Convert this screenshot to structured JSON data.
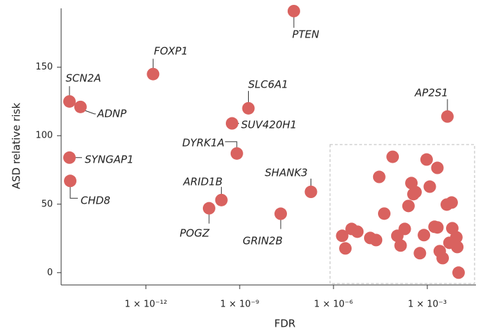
{
  "chart_data": {
    "type": "scatter",
    "x_label": "FDR",
    "y_label": "ASD relative risk",
    "log_x": true,
    "color": "#d9625f",
    "xlim": [
      1.95e-15,
      0.036
    ],
    "ylim": [
      -9,
      193
    ],
    "xticks": [
      {
        "value": 1e-12,
        "label": "1 × 10⁻¹²"
      },
      {
        "value": 1e-09,
        "label": "1 × 10⁻⁹"
      },
      {
        "value": 1e-06,
        "label": "1 × 10⁻⁶"
      },
      {
        "value": 0.001,
        "label": "1 × 10⁻³"
      }
    ],
    "yticks": [
      0,
      50,
      100,
      150
    ],
    "x": [
      5.4e-08,
      1.7e-12,
      3.6e-15,
      8.1e-15,
      1.9e-09,
      0.0044,
      5.7e-10,
      8.1e-10,
      3.6e-15,
      3.8e-15,
      1.9e-07,
      2.6e-10,
      1.05e-10,
      2.05e-08,
      7.8e-05,
      0.00095,
      0.0021,
      2.9e-05,
      0.00031,
      0.0012,
      0.00042,
      0.00036,
      0.006,
      0.0042,
      0.00025,
      4.2e-05,
      0.0017,
      0.0021,
      0.0063,
      3.8e-06,
      5.8e-06,
      0.00019,
      1.9e-06,
      0.00011,
      0.00078,
      1.5e-05,
      2.3e-05,
      0.0085,
      0.0051,
      0.0025,
      0.00014,
      0.0091,
      2.4e-06,
      0.00058,
      0.0031,
      0.01
    ],
    "values": [
      191,
      145,
      125,
      121,
      120,
      114,
      109,
      87,
      84,
      67,
      59,
      53,
      47,
      43,
      84.6,
      82.6,
      76.5,
      69.9,
      65.4,
      62.8,
      58.8,
      57.3,
      51.2,
      49.7,
      48.7,
      43.1,
      33.5,
      33.0,
      32.4,
      31.9,
      29.9,
      31.9,
      26.9,
      26.9,
      27.4,
      25.3,
      23.8,
      25.8,
      21.8,
      15.7,
      19.8,
      18.7,
      17.7,
      14.2,
      10.6,
      0
    ],
    "labels": [
      "PTEN",
      "FOXP1",
      "SCN2A",
      "ADNP",
      "SLC6A1",
      "AP2S1",
      "SUV420H1",
      "DYRK1A",
      "SYNGAP1",
      "CHD8",
      "SHANK3",
      "ARID1B",
      "POGZ",
      "GRIN2B",
      null,
      null,
      null,
      null,
      null,
      null,
      null,
      null,
      null,
      null,
      null,
      null,
      null,
      null,
      null,
      null,
      null,
      null,
      null,
      null,
      null,
      null,
      null,
      null,
      null,
      null,
      null,
      null,
      null,
      null,
      null,
      null
    ]
  }
}
